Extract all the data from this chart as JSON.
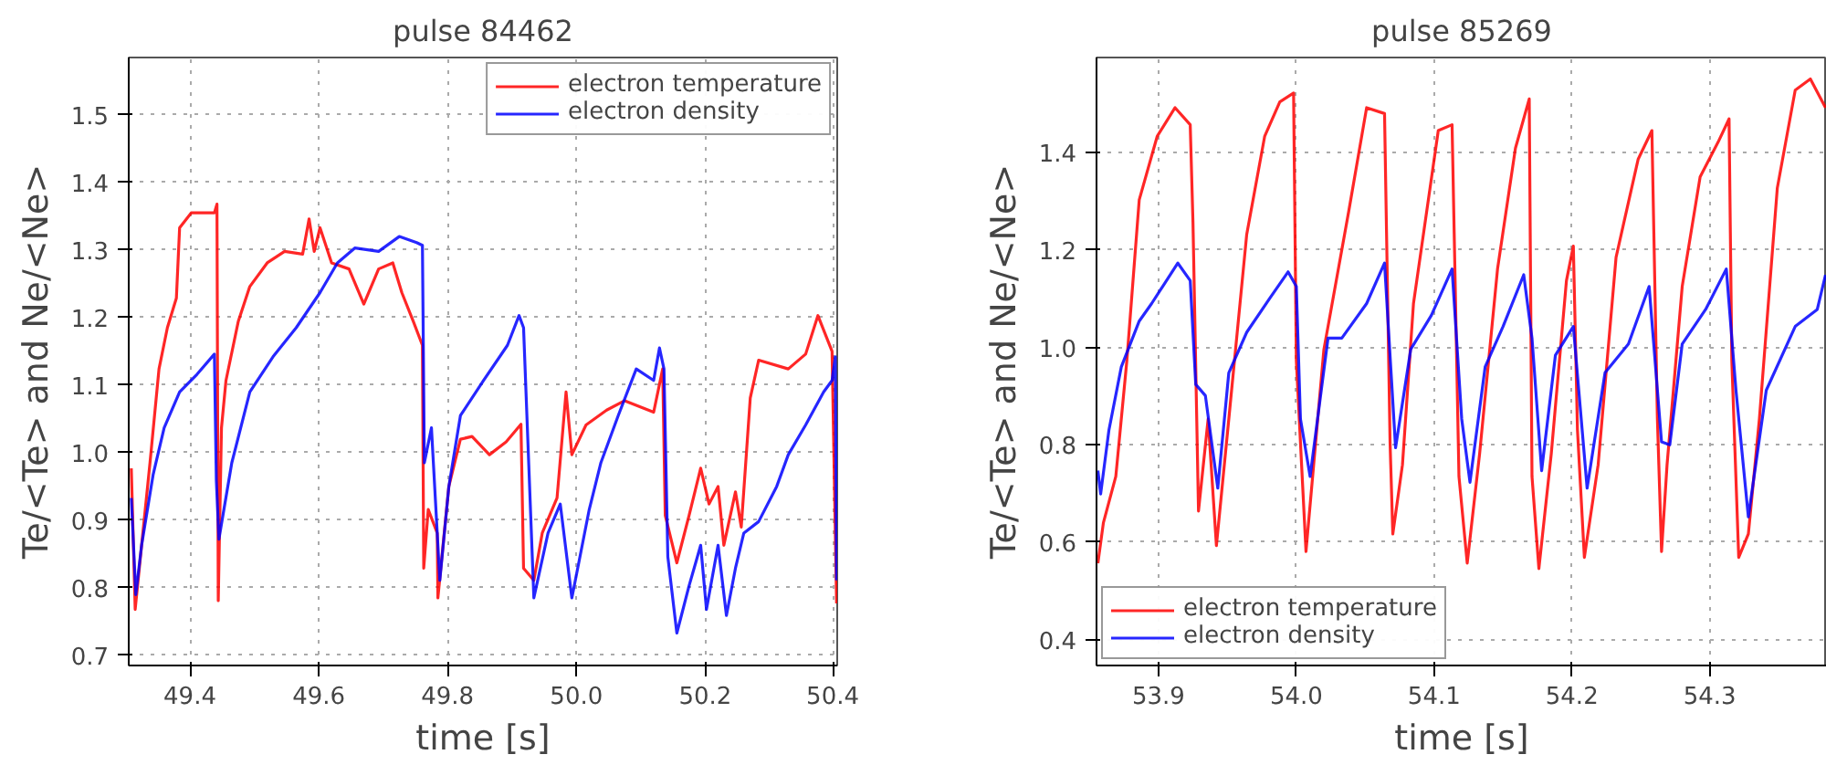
{
  "chart_data": [
    {
      "type": "line",
      "title": "pulse 84462",
      "xlabel": "time [s]",
      "ylabel": "Te/<Te> and Ne/<Ne>",
      "xlim": [
        49.305,
        50.405
      ],
      "ylim": [
        0.685,
        1.585
      ],
      "xticks": [
        49.4,
        49.6,
        49.8,
        {
          "value": 50,
          "label": "50.0"
        },
        50.2,
        50.4
      ],
      "yticks": [
        0.7,
        0.8,
        0.9,
        {
          "value": 1,
          "label": "1.0"
        },
        1.1,
        1.2,
        1.3,
        1.4,
        1.5
      ],
      "grid": true,
      "legend": "top right",
      "line_style": "solid",
      "marker": "none",
      "series": [
        {
          "name": "electron temperature",
          "color": "#ff0000",
          "x": [
            49.309,
            49.315,
            49.325,
            49.338,
            49.352,
            49.365,
            49.379,
            49.384,
            49.402,
            49.438,
            49.442,
            49.444,
            49.449,
            49.456,
            49.475,
            49.493,
            49.52,
            49.547,
            49.575,
            49.585,
            49.593,
            49.602,
            49.62,
            49.647,
            49.67,
            49.693,
            49.715,
            49.729,
            49.747,
            49.761,
            49.763,
            49.77,
            49.784,
            49.785,
            49.793,
            49.802,
            49.82,
            49.838,
            49.865,
            49.891,
            49.914,
            49.918,
            49.934,
            49.947,
            49.97,
            49.984,
            49.993,
            50.015,
            50.047,
            50.075,
            50.12,
            50.134,
            50.138,
            50.156,
            50.175,
            50.193,
            50.206,
            50.22,
            50.229,
            50.247,
            50.256,
            50.27,
            50.283,
            50.329,
            50.356,
            50.375,
            50.397,
            50.404
          ],
          "values": [
            0.977,
            0.768,
            0.863,
            0.985,
            1.124,
            1.185,
            1.229,
            1.333,
            1.355,
            1.355,
            1.368,
            0.781,
            1.037,
            1.107,
            1.194,
            1.246,
            1.281,
            1.298,
            1.294,
            1.346,
            1.298,
            1.333,
            1.281,
            1.272,
            1.22,
            1.272,
            1.281,
            1.237,
            1.194,
            1.159,
            0.829,
            0.916,
            0.881,
            0.785,
            0.863,
            0.95,
            1.02,
            1.024,
            0.997,
            1.016,
            1.042,
            0.829,
            0.811,
            0.881,
            0.933,
            1.09,
            0.997,
            1.041,
            1.063,
            1.077,
            1.06,
            1.124,
            0.907,
            0.837,
            0.907,
            0.977,
            0.924,
            0.95,
            0.863,
            0.942,
            0.89,
            1.081,
            1.137,
            1.124,
            1.146,
            1.203,
            1.15,
            0.777
          ]
        },
        {
          "name": "electron density",
          "color": "#0000ff",
          "x": [
            49.309,
            49.316,
            49.325,
            49.343,
            49.36,
            49.384,
            49.411,
            49.438,
            49.441,
            49.445,
            49.465,
            49.493,
            49.529,
            49.565,
            49.602,
            49.629,
            49.656,
            49.693,
            49.725,
            49.752,
            49.761,
            49.764,
            49.775,
            49.788,
            49.802,
            49.82,
            49.856,
            49.893,
            49.911,
            49.918,
            49.934,
            49.956,
            49.975,
            49.993,
            50.02,
            50.038,
            50.065,
            50.093,
            50.12,
            50.129,
            50.136,
            50.142,
            50.156,
            50.175,
            50.193,
            50.202,
            50.22,
            50.233,
            50.247,
            50.26,
            50.283,
            50.311,
            50.329,
            50.356,
            50.384,
            50.397,
            50.402,
            50.404
          ],
          "values": [
            0.933,
            0.79,
            0.863,
            0.968,
            1.037,
            1.09,
            1.116,
            1.146,
            0.959,
            0.872,
            0.985,
            1.09,
            1.142,
            1.185,
            1.237,
            1.281,
            1.303,
            1.298,
            1.32,
            1.311,
            1.307,
            0.985,
            1.037,
            0.811,
            0.95,
            1.055,
            1.107,
            1.159,
            1.203,
            1.185,
            0.785,
            0.881,
            0.924,
            0.785,
            0.916,
            0.985,
            1.055,
            1.124,
            1.107,
            1.155,
            1.124,
            0.846,
            0.733,
            0.803,
            0.863,
            0.768,
            0.863,
            0.759,
            0.829,
            0.881,
            0.898,
            0.95,
            0.997,
            1.041,
            1.09,
            1.107,
            1.142,
            0.811
          ]
        }
      ]
    },
    {
      "type": "line",
      "title": "pulse 85269",
      "xlabel": "time [s]",
      "ylabel": "Te/<Te> and Ne/<Ne>",
      "xlim": [
        53.855,
        54.385
      ],
      "ylim": [
        0.347,
        1.595
      ],
      "xticks": [
        53.9,
        {
          "value": 54,
          "label": "54.0"
        },
        54.1,
        54.2,
        54.3
      ],
      "yticks": [
        0.4,
        0.6,
        0.8,
        {
          "value": 1,
          "label": "1.0"
        },
        1.2,
        1.4
      ],
      "grid": true,
      "legend": "bottom left",
      "line_style": "solid",
      "marker": "none",
      "series": [
        {
          "name": "electron temperature",
          "color": "#ff0000",
          "x": [
            53.856,
            53.86,
            53.869,
            53.877,
            53.886,
            53.899,
            53.912,
            53.923,
            53.925,
            53.929,
            53.936,
            53.942,
            53.951,
            53.964,
            53.977,
            53.988,
            53.998,
            54.0,
            54.007,
            54.02,
            54.038,
            54.051,
            54.064,
            54.068,
            54.07,
            54.077,
            54.085,
            54.103,
            54.113,
            54.118,
            54.124,
            54.133,
            54.146,
            54.159,
            54.169,
            54.171,
            54.176,
            54.185,
            54.196,
            54.201,
            54.204,
            54.209,
            54.219,
            54.232,
            54.248,
            54.258,
            54.262,
            54.265,
            54.269,
            54.28,
            54.293,
            54.306,
            54.314,
            54.316,
            54.321,
            54.328,
            54.336,
            54.349,
            54.362,
            54.373,
            54.384
          ],
          "values": [
            0.557,
            0.64,
            0.735,
            0.972,
            1.303,
            1.433,
            1.492,
            1.457,
            1.256,
            0.664,
            0.853,
            0.593,
            0.853,
            1.232,
            1.433,
            1.504,
            1.522,
            0.972,
            0.581,
            0.996,
            1.279,
            1.492,
            1.48,
            0.806,
            0.617,
            0.759,
            1.09,
            1.445,
            1.457,
            0.735,
            0.557,
            0.782,
            1.161,
            1.409,
            1.51,
            0.735,
            0.546,
            0.782,
            1.137,
            1.208,
            0.83,
            0.569,
            0.759,
            1.185,
            1.386,
            1.445,
            0.853,
            0.581,
            0.759,
            1.125,
            1.35,
            1.421,
            1.469,
            0.972,
            0.569,
            0.617,
            0.853,
            1.327,
            1.528,
            1.551,
            1.492
          ]
        },
        {
          "name": "electron density",
          "color": "#0000ff",
          "x": [
            53.856,
            53.858,
            53.864,
            53.873,
            53.886,
            53.895,
            53.903,
            53.914,
            53.923,
            53.927,
            53.934,
            53.943,
            53.951,
            53.964,
            53.981,
            53.994,
            54.0,
            54.003,
            54.01,
            54.023,
            54.033,
            54.051,
            54.064,
            54.072,
            54.083,
            54.098,
            54.113,
            54.12,
            54.126,
            54.137,
            54.15,
            54.165,
            54.171,
            54.178,
            54.188,
            54.201,
            54.211,
            54.224,
            54.241,
            54.256,
            54.265,
            54.271,
            54.28,
            54.297,
            54.312,
            54.319,
            54.328,
            54.341,
            54.362,
            54.378,
            54.384
          ],
          "values": [
            0.747,
            0.699,
            0.83,
            0.96,
            1.054,
            1.09,
            1.125,
            1.173,
            1.137,
            0.924,
            0.901,
            0.711,
            0.948,
            1.031,
            1.102,
            1.155,
            1.125,
            0.853,
            0.735,
            1.019,
            1.019,
            1.09,
            1.173,
            0.794,
            0.996,
            1.066,
            1.161,
            0.853,
            0.723,
            0.96,
            1.043,
            1.149,
            1.019,
            0.747,
            0.984,
            1.043,
            0.711,
            0.948,
            1.007,
            1.125,
            0.806,
            0.8,
            1.007,
            1.078,
            1.161,
            0.912,
            0.652,
            0.912,
            1.043,
            1.078,
            1.149
          ]
        }
      ]
    }
  ]
}
